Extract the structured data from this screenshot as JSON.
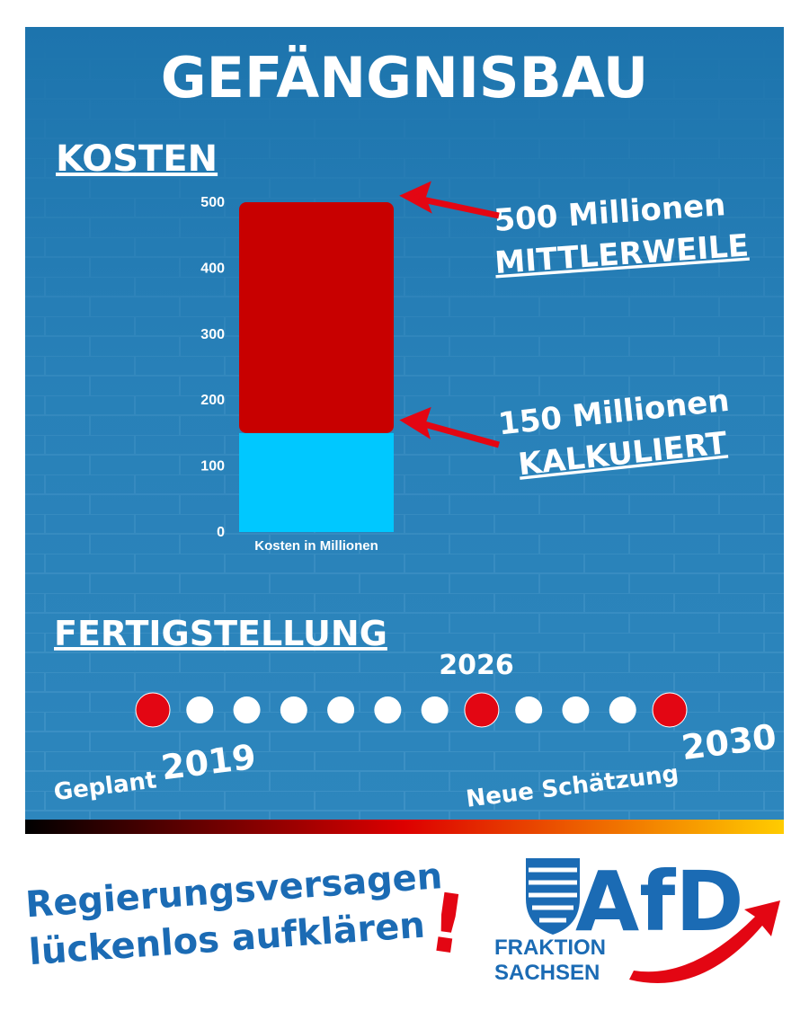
{
  "title": "GEFÄNGNISBAU",
  "chart_data": {
    "type": "bar",
    "title": "KOSTEN",
    "stacked": true,
    "categories": [
      "Kosten in Millionen"
    ],
    "series": [
      {
        "color": "#00c8ff",
        "values": [
          150
        ]
      },
      {
        "color": "#c80000",
        "values": [
          350
        ]
      }
    ],
    "ylim": [
      0,
      500
    ],
    "yticks": [
      0,
      100,
      200,
      300,
      400,
      500
    ],
    "grid": false,
    "annotations": [
      {
        "amount": "500 Millionen",
        "label": "MITTLERWEILE"
      },
      {
        "amount": "150 Millionen",
        "label": "KALKULIERT"
      }
    ]
  },
  "timeline": {
    "heading": "FERTIGSTELLUNG",
    "highlighted": [
      true,
      false,
      false,
      false,
      false,
      false,
      false,
      true,
      false,
      false,
      false,
      true
    ],
    "highlight_color": "#e30613",
    "start": {
      "text": "Geplant",
      "year": "2019"
    },
    "middle": "2026",
    "end": {
      "text": "Neue Schätzung",
      "year": "2030"
    }
  },
  "footer": {
    "slogan": [
      "Regierungsversagen",
      "lückenlos aufklären"
    ],
    "exclamation": "!",
    "logo": {
      "name": "AfD",
      "line1": "FRAKTION",
      "line2": "SACHSEN"
    }
  }
}
